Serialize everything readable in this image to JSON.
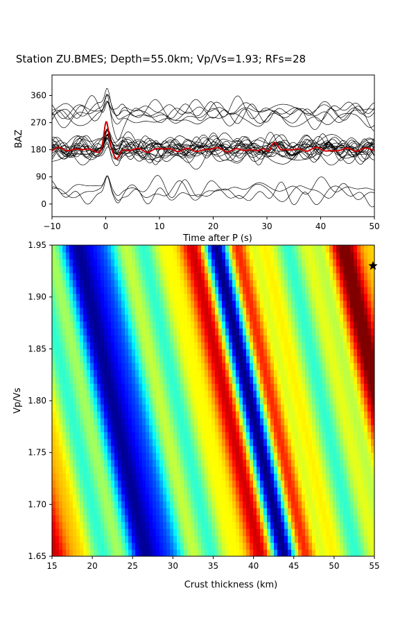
{
  "chart_data": [
    {
      "type": "line",
      "title": "Station ZU.BMES; Depth=55.0km; Vp/Vs=1.93; RFs=28",
      "xlabel": "Time after P (s)",
      "ylabel": "BAZ",
      "xlim": [
        -10,
        50
      ],
      "ylim": [
        -42,
        428
      ],
      "xticks": [
        "−10",
        "0",
        "10",
        "20",
        "30",
        "40",
        "50"
      ],
      "xtick_values": [
        -10,
        0,
        10,
        20,
        30,
        40,
        50
      ],
      "yticks": [
        "0",
        "90",
        "180",
        "270",
        "360"
      ],
      "ytick_values": [
        0,
        90,
        180,
        270,
        360
      ],
      "receiver_function_count": 28,
      "trace_baselines": [
        30,
        40,
        55,
        280,
        290,
        300,
        305,
        310,
        318,
        160,
        165,
        170,
        172,
        175,
        177,
        178,
        180,
        182,
        183,
        185,
        187,
        188,
        190,
        192,
        195,
        198,
        200,
        205
      ],
      "trace_color": "#000000",
      "stack_color": "#cc0000",
      "stack_baseline": 180,
      "stack_peaks": [
        {
          "time": 0,
          "baz": 268
        },
        {
          "time": 2,
          "baz": 150
        },
        {
          "time": 31.5,
          "baz": 210
        }
      ]
    },
    {
      "type": "heatmap",
      "xlabel": "Crust thickness (km)",
      "ylabel": "Vp/Vs",
      "xlim": [
        15,
        55
      ],
      "ylim": [
        1.65,
        1.95
      ],
      "xticks": [
        "15",
        "20",
        "25",
        "30",
        "35",
        "40",
        "45",
        "50",
        "55"
      ],
      "xtick_values": [
        15,
        20,
        25,
        30,
        35,
        40,
        45,
        50,
        55
      ],
      "yticks": [
        "1.65",
        "1.70",
        "1.75",
        "1.80",
        "1.85",
        "1.90",
        "1.95"
      ],
      "ytick_values": [
        1.65,
        1.7,
        1.75,
        1.8,
        1.85,
        1.9,
        1.95
      ],
      "colormap": "jet",
      "colors": [
        "#00008f",
        "#0000ff",
        "#00ffff",
        "#ffff00",
        "#ff0000",
        "#800000"
      ],
      "optimum": {
        "thickness_km": 55.0,
        "vpvs": 1.93,
        "marker": "star"
      },
      "band_pattern_note_free": true
    }
  ]
}
